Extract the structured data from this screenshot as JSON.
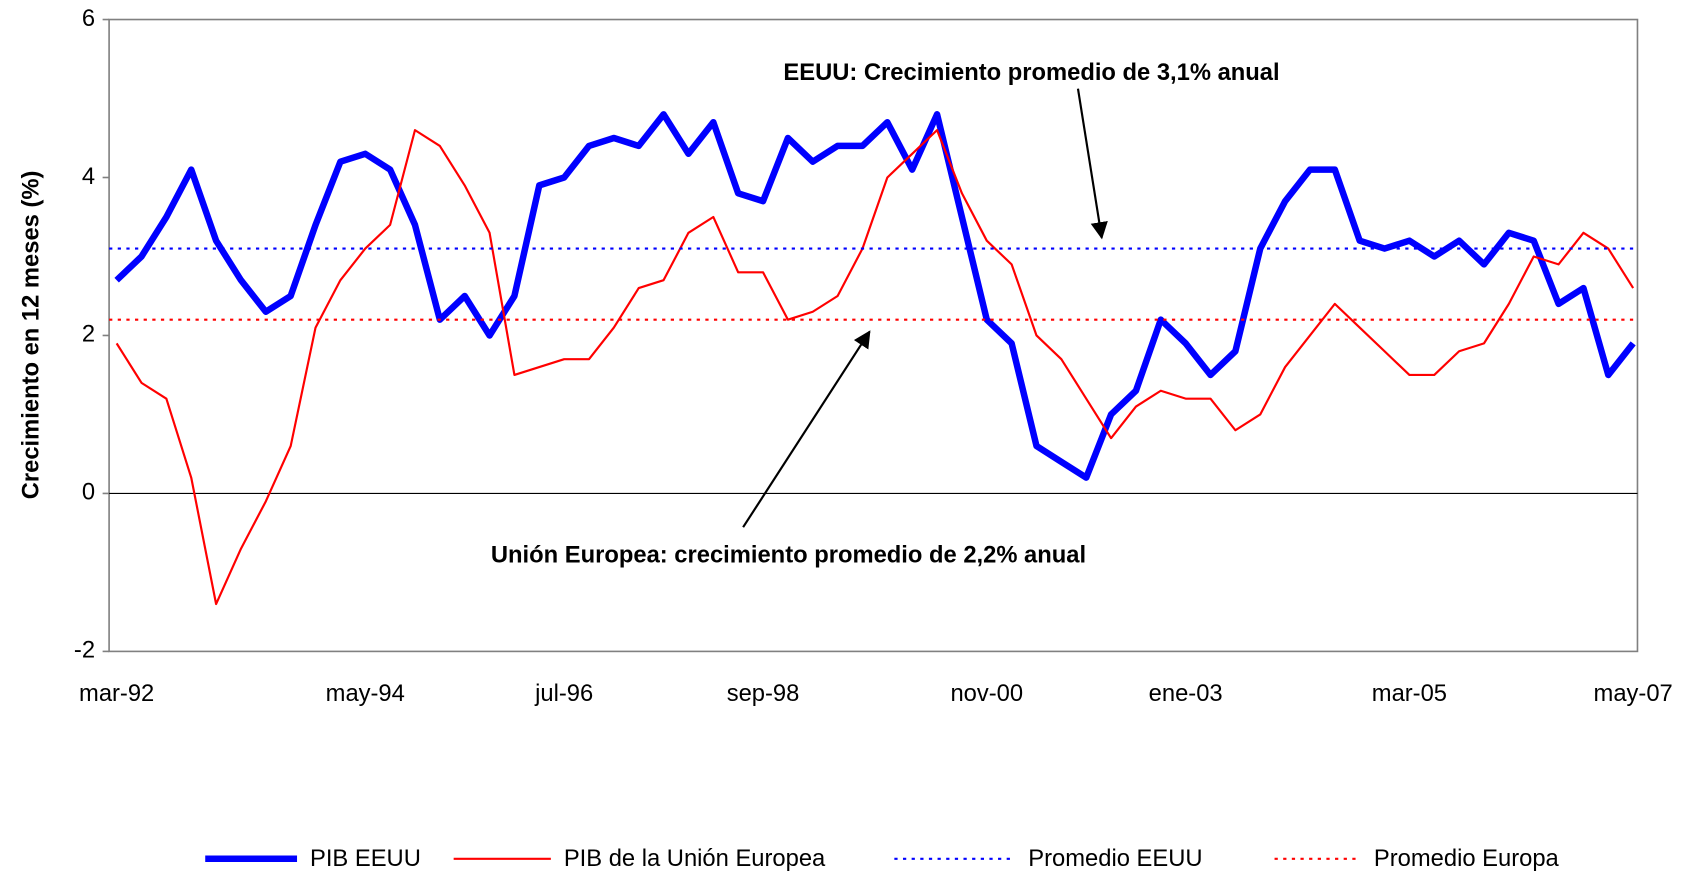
{
  "chart_data": {
    "type": "line",
    "y_label": "Crecimiento en 12 meses (%)",
    "categories": [
      "mar-92",
      null,
      null,
      null,
      null,
      null,
      null,
      null,
      null,
      null,
      "may-94",
      null,
      null,
      null,
      null,
      null,
      null,
      null,
      "jul-96",
      null,
      null,
      null,
      null,
      null,
      null,
      null,
      "sep-98",
      null,
      null,
      null,
      null,
      null,
      null,
      null,
      null,
      "nov-00",
      null,
      null,
      null,
      null,
      null,
      null,
      null,
      "ene-03",
      null,
      null,
      null,
      null,
      null,
      null,
      null,
      null,
      "mar-05",
      null,
      null,
      null,
      null,
      null,
      null,
      null,
      null,
      "may-07"
    ],
    "series": [
      {
        "name": "PIB EEUU",
        "color": "#0000ff",
        "width": 6,
        "values": [
          2.7,
          3.0,
          3.5,
          4.1,
          3.2,
          2.7,
          2.3,
          2.5,
          3.4,
          4.2,
          4.3,
          4.1,
          3.4,
          2.2,
          2.5,
          2.0,
          2.5,
          3.9,
          4.0,
          4.4,
          4.5,
          4.4,
          4.8,
          4.3,
          4.7,
          3.8,
          3.7,
          4.5,
          4.2,
          4.4,
          4.4,
          4.7,
          4.1,
          4.8,
          3.5,
          2.2,
          1.9,
          0.6,
          0.4,
          0.2,
          1.0,
          1.3,
          2.2,
          1.9,
          1.5,
          1.8,
          3.1,
          3.7,
          4.1,
          4.1,
          3.2,
          3.1,
          3.2,
          3.0,
          3.2,
          2.9,
          3.3,
          3.2,
          2.4,
          2.6,
          1.5,
          1.9
        ]
      },
      {
        "name": "PIB de la Unión Europea",
        "color": "#ff0000",
        "width": 2,
        "values": [
          1.9,
          1.4,
          1.2,
          0.2,
          -1.4,
          -0.7,
          -0.1,
          0.6,
          2.1,
          2.7,
          3.1,
          3.4,
          4.6,
          4.4,
          3.9,
          3.3,
          1.5,
          1.6,
          1.7,
          1.7,
          2.1,
          2.6,
          2.7,
          3.3,
          3.5,
          2.8,
          2.8,
          2.2,
          2.3,
          2.5,
          3.1,
          4.0,
          4.3,
          4.6,
          3.8,
          3.2,
          2.9,
          2.0,
          1.7,
          1.2,
          0.7,
          1.1,
          1.3,
          1.2,
          1.2,
          0.8,
          1.0,
          1.6,
          2.0,
          2.4,
          2.1,
          1.8,
          1.5,
          1.5,
          1.8,
          1.9,
          2.4,
          3.0,
          2.9,
          3.3,
          3.1,
          2.6
        ]
      },
      {
        "name": "Promedio EEUU",
        "color": "#0000ff",
        "width": 2,
        "dotted": true,
        "value": 3.1
      },
      {
        "name": "Promedio Europa",
        "color": "#ff0000",
        "width": 2,
        "dotted": true,
        "value": 2.2
      }
    ],
    "ylim": [
      -2,
      6
    ],
    "yticks": [
      -2,
      0,
      2,
      4,
      6
    ],
    "annotations": [
      {
        "text": "EEUU: Crecimiento promedio de 3,1% anual"
      },
      {
        "text": "Unión Europea: crecimiento promedio de 2,2% anual"
      }
    ]
  }
}
